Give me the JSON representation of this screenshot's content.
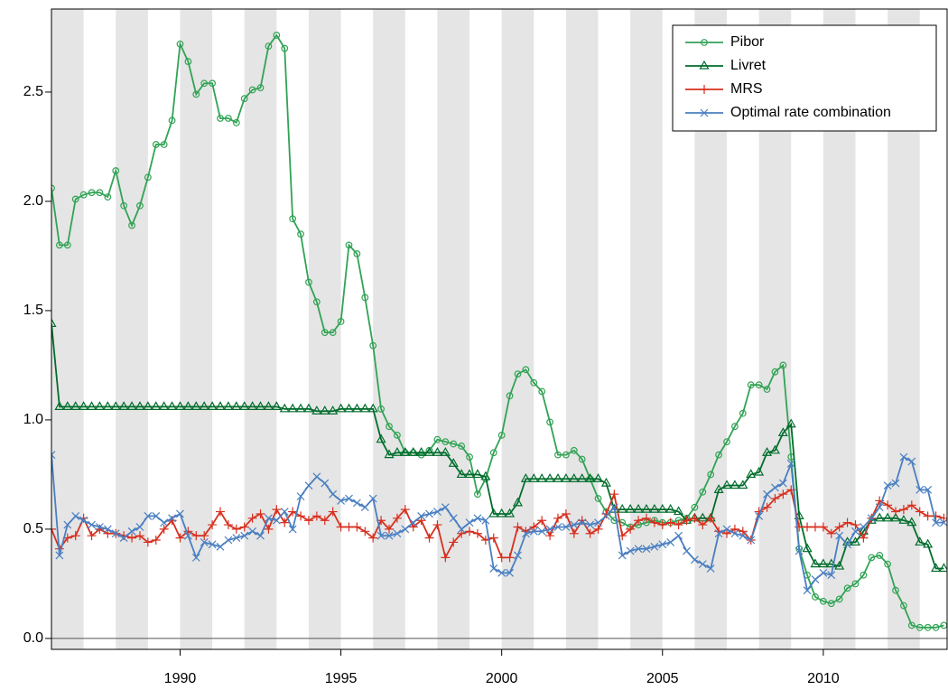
{
  "chart_data": {
    "type": "line",
    "x": [
      1986,
      1986.25,
      1986.5,
      1986.75,
      1987,
      1987.25,
      1987.5,
      1987.75,
      1988,
      1988.25,
      1988.5,
      1988.75,
      1989,
      1989.25,
      1989.5,
      1989.75,
      1990,
      1990.25,
      1990.5,
      1990.75,
      1991,
      1991.25,
      1991.5,
      1991.75,
      1992,
      1992.25,
      1992.5,
      1992.75,
      1993,
      1993.25,
      1993.5,
      1993.75,
      1994,
      1994.25,
      1994.5,
      1994.75,
      1995,
      1995.25,
      1995.5,
      1995.75,
      1996,
      1996.25,
      1996.5,
      1996.75,
      1997,
      1997.25,
      1997.5,
      1997.75,
      1998,
      1998.25,
      1998.5,
      1998.75,
      1999,
      1999.25,
      1999.5,
      1999.75,
      2000,
      2000.25,
      2000.5,
      2000.75,
      2001,
      2001.25,
      2001.5,
      2001.75,
      2002,
      2002.25,
      2002.5,
      2002.75,
      2003,
      2003.25,
      2003.5,
      2003.75,
      2004,
      2004.25,
      2004.5,
      2004.75,
      2005,
      2005.25,
      2005.5,
      2005.75,
      2006,
      2006.25,
      2006.5,
      2006.75,
      2007,
      2007.25,
      2007.5,
      2007.75,
      2008,
      2008.25,
      2008.5,
      2008.75,
      2009,
      2009.25,
      2009.5,
      2009.75,
      2010,
      2010.25,
      2010.5,
      2010.75,
      2011,
      2011.25,
      2011.5,
      2011.75,
      2012,
      2012.25,
      2012.5,
      2012.75,
      2013,
      2013.25,
      2013.5,
      2013.75
    ],
    "series": [
      {
        "name": "Pibor",
        "color": "#31a354",
        "marker": "circle",
        "values": [
          2.06,
          1.8,
          1.8,
          2.01,
          2.03,
          2.04,
          2.04,
          2.02,
          2.14,
          1.98,
          1.89,
          1.98,
          2.11,
          2.26,
          2.26,
          2.37,
          2.72,
          2.64,
          2.49,
          2.54,
          2.54,
          2.38,
          2.38,
          2.36,
          2.47,
          2.51,
          2.52,
          2.71,
          2.76,
          2.7,
          1.92,
          1.85,
          1.63,
          1.54,
          1.4,
          1.4,
          1.45,
          1.8,
          1.76,
          1.56,
          1.34,
          1.05,
          0.97,
          0.93,
          0.85,
          0.85,
          0.84,
          0.86,
          0.91,
          0.9,
          0.89,
          0.88,
          0.83,
          0.66,
          0.73,
          0.85,
          0.93,
          1.11,
          1.21,
          1.23,
          1.17,
          1.13,
          0.99,
          0.84,
          0.84,
          0.86,
          0.82,
          0.73,
          0.64,
          0.58,
          0.54,
          0.53,
          0.51,
          0.52,
          0.53,
          0.54,
          0.53,
          0.53,
          0.54,
          0.55,
          0.6,
          0.67,
          0.75,
          0.84,
          0.9,
          0.97,
          1.03,
          1.16,
          1.16,
          1.14,
          1.22,
          1.25,
          0.83,
          0.41,
          0.29,
          0.19,
          0.17,
          0.16,
          0.18,
          0.23,
          0.25,
          0.29,
          0.37,
          0.38,
          0.34,
          0.22,
          0.15,
          0.06,
          0.05,
          0.05,
          0.05,
          0.06
        ]
      },
      {
        "name": "Livret",
        "color": "#006d2c",
        "marker": "triangle",
        "values": [
          1.44,
          1.06,
          1.06,
          1.06,
          1.06,
          1.06,
          1.06,
          1.06,
          1.06,
          1.06,
          1.06,
          1.06,
          1.06,
          1.06,
          1.06,
          1.06,
          1.06,
          1.06,
          1.06,
          1.06,
          1.06,
          1.06,
          1.06,
          1.06,
          1.06,
          1.06,
          1.06,
          1.06,
          1.06,
          1.05,
          1.05,
          1.05,
          1.05,
          1.04,
          1.04,
          1.04,
          1.05,
          1.05,
          1.05,
          1.05,
          1.05,
          0.91,
          0.84,
          0.85,
          0.85,
          0.85,
          0.85,
          0.85,
          0.85,
          0.85,
          0.8,
          0.75,
          0.75,
          0.75,
          0.74,
          0.57,
          0.57,
          0.57,
          0.62,
          0.73,
          0.73,
          0.73,
          0.73,
          0.73,
          0.73,
          0.73,
          0.73,
          0.73,
          0.73,
          0.71,
          0.59,
          0.59,
          0.59,
          0.59,
          0.59,
          0.59,
          0.59,
          0.59,
          0.58,
          0.54,
          0.55,
          0.55,
          0.55,
          0.68,
          0.7,
          0.7,
          0.7,
          0.75,
          0.76,
          0.85,
          0.86,
          0.94,
          0.98,
          0.56,
          0.41,
          0.34,
          0.34,
          0.34,
          0.33,
          0.44,
          0.44,
          0.49,
          0.54,
          0.55,
          0.55,
          0.55,
          0.54,
          0.53,
          0.44,
          0.43,
          0.32,
          0.32
        ]
      },
      {
        "name": "MRS",
        "color": "#d7301f",
        "marker": "plus",
        "values": [
          0.5,
          0.41,
          0.46,
          0.47,
          0.55,
          0.47,
          0.5,
          0.48,
          0.48,
          0.47,
          0.46,
          0.47,
          0.44,
          0.45,
          0.5,
          0.54,
          0.46,
          0.49,
          0.47,
          0.47,
          0.52,
          0.58,
          0.52,
          0.5,
          0.51,
          0.55,
          0.57,
          0.5,
          0.59,
          0.53,
          0.58,
          0.56,
          0.54,
          0.56,
          0.54,
          0.58,
          0.51,
          0.51,
          0.51,
          0.49,
          0.46,
          0.54,
          0.5,
          0.55,
          0.59,
          0.51,
          0.54,
          0.46,
          0.52,
          0.37,
          0.44,
          0.48,
          0.49,
          0.48,
          0.45,
          0.46,
          0.37,
          0.37,
          0.51,
          0.49,
          0.51,
          0.54,
          0.47,
          0.55,
          0.57,
          0.48,
          0.54,
          0.48,
          0.5,
          0.57,
          0.66,
          0.47,
          0.5,
          0.54,
          0.55,
          0.53,
          0.52,
          0.53,
          0.52,
          0.54,
          0.55,
          0.52,
          0.55,
          0.49,
          0.48,
          0.5,
          0.49,
          0.45,
          0.58,
          0.6,
          0.64,
          0.66,
          0.68,
          0.51,
          0.51,
          0.51,
          0.51,
          0.48,
          0.51,
          0.53,
          0.52,
          0.46,
          0.55,
          0.63,
          0.61,
          0.58,
          0.59,
          0.61,
          0.58,
          0.56,
          0.56,
          0.55
        ]
      },
      {
        "name": "Optimal rate combination",
        "color": "#4a7fc1",
        "marker": "cross",
        "values": [
          0.84,
          0.38,
          0.52,
          0.56,
          0.54,
          0.52,
          0.51,
          0.5,
          0.48,
          0.46,
          0.49,
          0.51,
          0.56,
          0.56,
          0.53,
          0.55,
          0.57,
          0.47,
          0.37,
          0.44,
          0.43,
          0.42,
          0.45,
          0.46,
          0.47,
          0.49,
          0.47,
          0.55,
          0.54,
          0.58,
          0.5,
          0.65,
          0.7,
          0.74,
          0.71,
          0.66,
          0.63,
          0.64,
          0.62,
          0.6,
          0.64,
          0.47,
          0.47,
          0.48,
          0.5,
          0.53,
          0.56,
          0.57,
          0.58,
          0.6,
          0.55,
          0.5,
          0.53,
          0.55,
          0.54,
          0.32,
          0.3,
          0.3,
          0.38,
          0.48,
          0.49,
          0.49,
          0.5,
          0.51,
          0.51,
          0.52,
          0.53,
          0.52,
          0.53,
          0.56,
          0.6,
          0.38,
          0.4,
          0.41,
          0.41,
          0.42,
          0.43,
          0.44,
          0.47,
          0.4,
          0.36,
          0.34,
          0.32,
          0.48,
          0.5,
          0.48,
          0.47,
          0.45,
          0.56,
          0.66,
          0.69,
          0.71,
          0.8,
          0.4,
          0.22,
          0.27,
          0.3,
          0.29,
          0.47,
          0.43,
          0.49,
          0.51,
          0.55,
          0.6,
          0.7,
          0.71,
          0.83,
          0.81,
          0.68,
          0.68,
          0.53,
          0.53
        ]
      }
    ],
    "xlim": [
      1986,
      2013.85
    ],
    "ylim": [
      -0.05,
      2.88
    ],
    "xticks": [
      1990,
      1995,
      2000,
      2005,
      2010
    ],
    "yticks": [
      {
        "value": 0,
        "label": "0.0"
      },
      {
        "value": 0.5,
        "label": "0.5"
      },
      {
        "value": 1,
        "label": "1.0"
      },
      {
        "value": 1.5,
        "label": "1.5"
      },
      {
        "value": 2,
        "label": "2.0"
      },
      {
        "value": 2.5,
        "label": "2.5"
      }
    ],
    "shaded_years": [
      1986,
      1988,
      1990,
      1992,
      1994,
      1996,
      1998,
      2000,
      2002,
      2004,
      2006,
      2008,
      2010,
      2012
    ],
    "shade_color": "#e5e5e5",
    "hline": 0,
    "legend": "top-right"
  }
}
